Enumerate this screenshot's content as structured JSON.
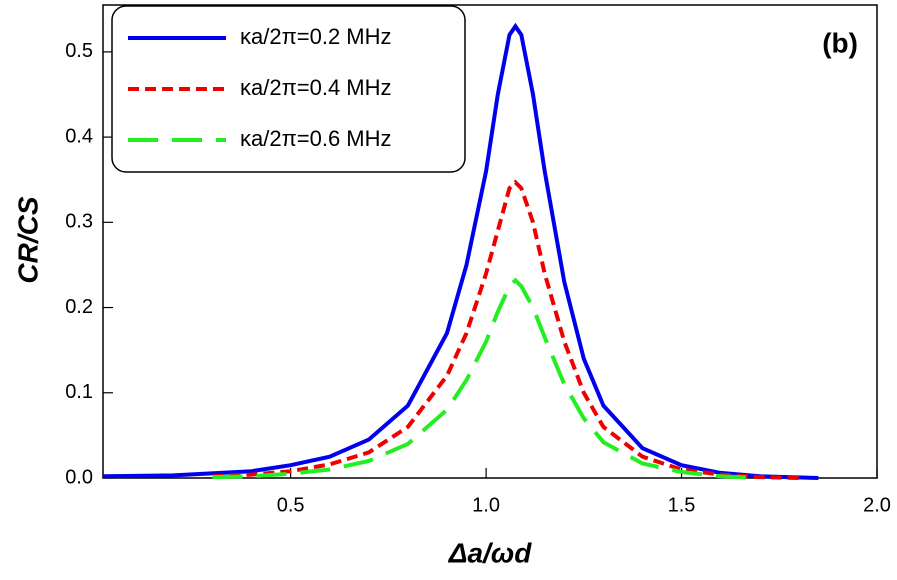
{
  "chart_data": {
    "type": "line",
    "x_label": "Δa/ωd",
    "y_label": "CR/CS",
    "annotation": "(b)",
    "xlim": [
      0.02,
      2.0
    ],
    "ylim": [
      0,
      0.555
    ],
    "xticks": [
      0.5,
      {
        "value": 1.0,
        "label": "1.0"
      },
      1.5,
      {
        "value": 2.0,
        "label": "2.0"
      }
    ],
    "yticks": [
      {
        "value": 0,
        "label": "0.0"
      },
      0.1,
      0.2,
      0.3,
      0.4,
      0.5
    ],
    "legend": "upper left",
    "series": [
      {
        "name": "κa/2π=0.2 MHz",
        "color": "#0000ee",
        "dash": "solid",
        "x": [
          0.02,
          0.2,
          0.4,
          0.5,
          0.6,
          0.7,
          0.8,
          0.9,
          0.95,
          1.0,
          1.03,
          1.06,
          1.075,
          1.09,
          1.12,
          1.15,
          1.2,
          1.25,
          1.3,
          1.4,
          1.5,
          1.6,
          1.7,
          1.85
        ],
        "values": [
          0.002,
          0.003,
          0.008,
          0.015,
          0.025,
          0.045,
          0.085,
          0.17,
          0.25,
          0.36,
          0.45,
          0.52,
          0.53,
          0.52,
          0.45,
          0.36,
          0.23,
          0.14,
          0.085,
          0.035,
          0.015,
          0.006,
          0.002,
          0
        ]
      },
      {
        "name": "κa/2π=0.4 MHz",
        "color": "#ee0000",
        "dash": "short",
        "x": [
          0.3,
          0.4,
          0.5,
          0.6,
          0.7,
          0.8,
          0.9,
          0.95,
          1.0,
          1.03,
          1.06,
          1.075,
          1.09,
          1.12,
          1.15,
          1.2,
          1.25,
          1.3,
          1.4,
          1.5,
          1.6,
          1.7,
          1.8
        ],
        "values": [
          0.002,
          0.004,
          0.008,
          0.016,
          0.03,
          0.06,
          0.12,
          0.17,
          0.24,
          0.29,
          0.34,
          0.347,
          0.34,
          0.3,
          0.24,
          0.16,
          0.1,
          0.06,
          0.025,
          0.01,
          0.004,
          0.001,
          0
        ]
      },
      {
        "name": "κa/2π=0.6 MHz",
        "color": "#22ee22",
        "dash": "long",
        "x": [
          0.3,
          0.4,
          0.5,
          0.6,
          0.7,
          0.8,
          0.9,
          0.95,
          1.0,
          1.03,
          1.06,
          1.075,
          1.09,
          1.12,
          1.15,
          1.2,
          1.25,
          1.3,
          1.4,
          1.5,
          1.6,
          1.7
        ],
        "values": [
          0.001,
          0.002,
          0.005,
          0.01,
          0.02,
          0.04,
          0.08,
          0.115,
          0.16,
          0.195,
          0.225,
          0.232,
          0.225,
          0.2,
          0.165,
          0.11,
          0.07,
          0.042,
          0.017,
          0.007,
          0.002,
          0
        ]
      }
    ]
  }
}
